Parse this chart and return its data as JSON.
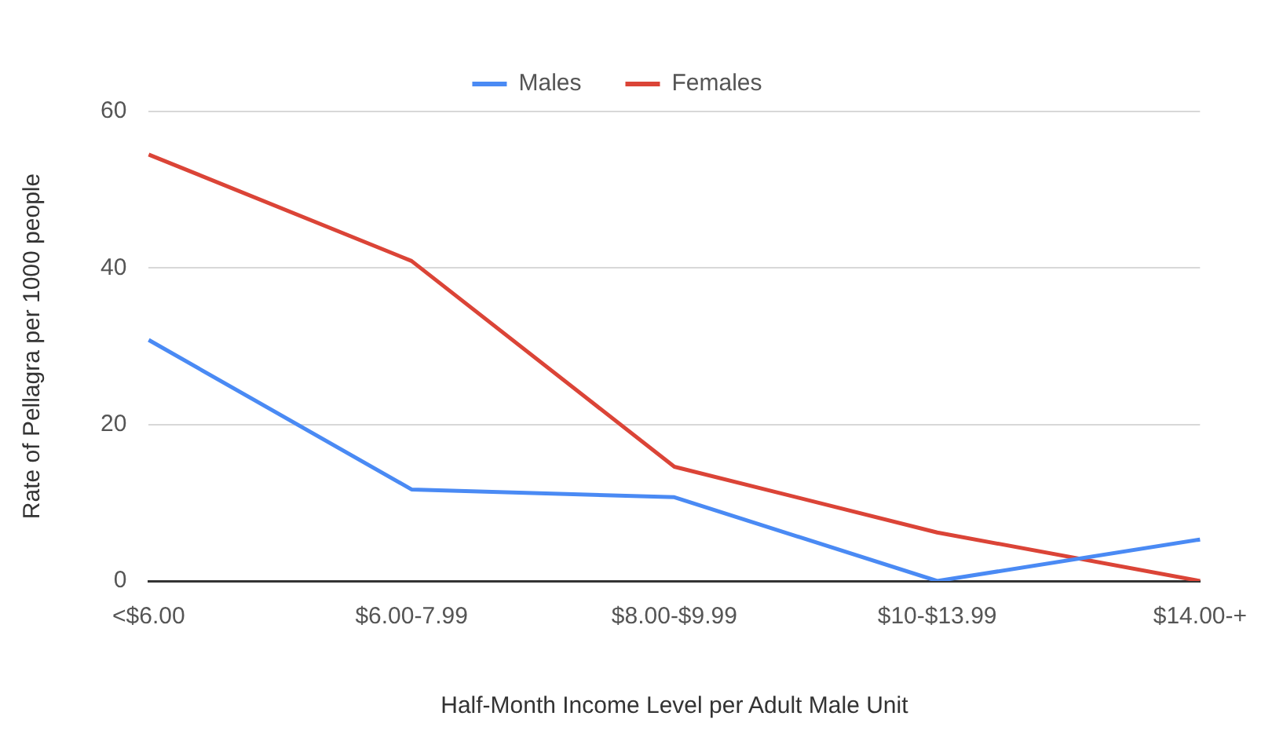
{
  "chart_data": {
    "type": "line",
    "xlabel": "Half-Month Income Level per Adult Male Unit",
    "ylabel": "Rate of Pellagra per 1000 people",
    "categories": [
      "<$6.00",
      "$6.00-7.99",
      "$8.00-$9.99",
      "$10-$13.99",
      "$14.00-+"
    ],
    "series": [
      {
        "name": "Males",
        "color": "#4a8af4",
        "values": [
          30.8,
          11.7,
          10.7,
          0,
          5.3
        ]
      },
      {
        "name": "Females",
        "color": "#db4437",
        "values": [
          54.5,
          40.9,
          14.6,
          6.2,
          0
        ]
      }
    ],
    "ylim": [
      0,
      60
    ],
    "yticks": [
      0,
      20,
      40,
      60
    ],
    "grid": "y",
    "legend": "top",
    "marker": "none",
    "line_style": "solid"
  }
}
